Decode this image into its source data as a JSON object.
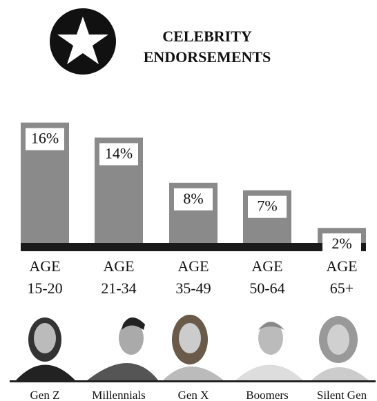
{
  "chart_data": {
    "type": "bar",
    "title": "CELEBRITY ENDORSEMENTS",
    "categories": [
      "AGE 15-20",
      "AGE 21-34",
      "AGE 35-49",
      "AGE 50-64",
      "AGE 65+"
    ],
    "generations": [
      "Gen Z",
      "Millennials",
      "Gen X",
      "Boomers",
      "Silent Gen"
    ],
    "values": [
      16,
      14,
      8,
      7,
      2
    ],
    "value_labels": [
      "16%",
      "14%",
      "8%",
      "7%",
      "2%"
    ],
    "color": "#8a8a8a"
  }
}
